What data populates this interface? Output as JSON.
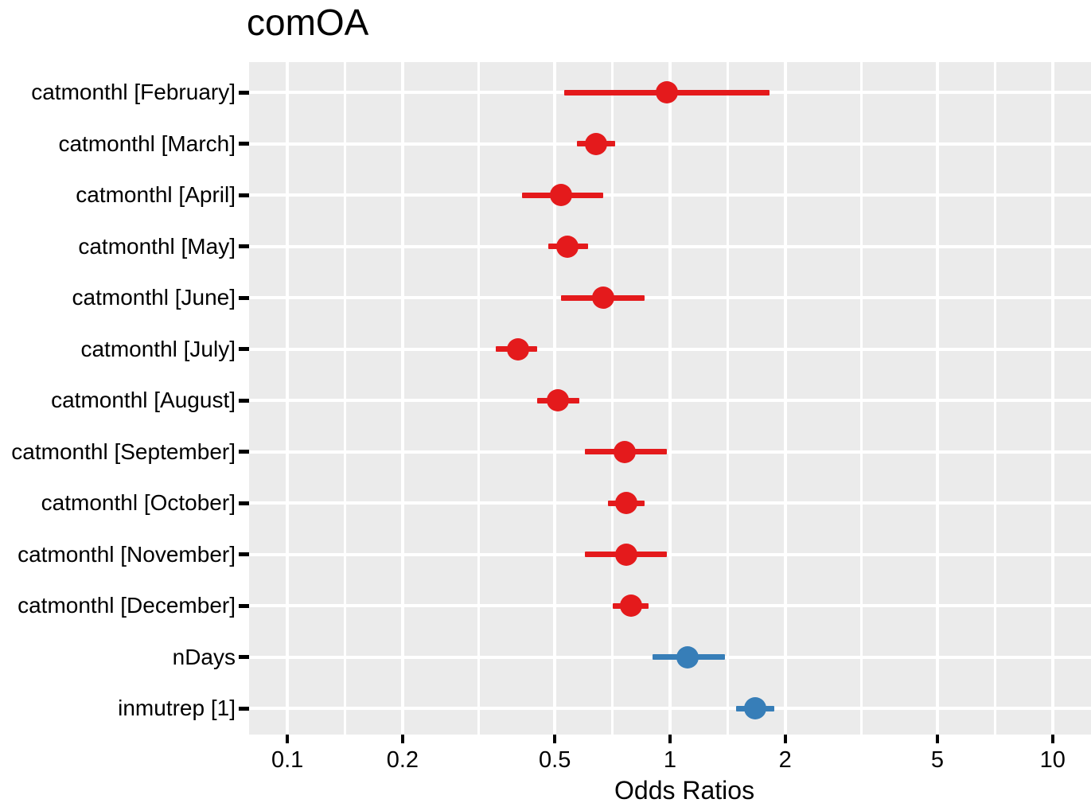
{
  "title": "comOA",
  "axis": {
    "x_title": "Odds Ratios"
  },
  "colors": {
    "negative_effect": "#E41A1C",
    "positive_effect": "#377EB8",
    "panel_background": "#EBEBEB",
    "gridline": "#FFFFFF",
    "text": "#000000"
  },
  "chart_data": {
    "type": "scatter",
    "subtype": "forest-plot-odds-ratios",
    "title": "comOA",
    "xlabel": "Odds Ratios",
    "ylabel": "",
    "x_scale": "log10",
    "x_domain": [
      0.0794,
      12.6
    ],
    "x_ticks": [
      0.1,
      0.2,
      0.5,
      1,
      2,
      5,
      10
    ],
    "x_tick_labels": [
      "0.1",
      "0.2",
      "0.5",
      "1",
      "2",
      "5",
      "10"
    ],
    "x_minor_ticks": [
      0.1414,
      0.3162,
      0.7071,
      1.4142,
      3.1623,
      7.0711
    ],
    "grid": true,
    "legend_position": "none",
    "rows": [
      {
        "label": "catmonthl [February]",
        "or": 0.98,
        "ci_low": 0.53,
        "ci_high": 1.82,
        "group": "negative_effect"
      },
      {
        "label": "catmonthl [March]",
        "or": 0.64,
        "ci_low": 0.57,
        "ci_high": 0.72,
        "group": "negative_effect"
      },
      {
        "label": "catmonthl [April]",
        "or": 0.52,
        "ci_low": 0.41,
        "ci_high": 0.67,
        "group": "negative_effect"
      },
      {
        "label": "catmonthl [May]",
        "or": 0.54,
        "ci_low": 0.48,
        "ci_high": 0.61,
        "group": "negative_effect"
      },
      {
        "label": "catmonthl [June]",
        "or": 0.67,
        "ci_low": 0.52,
        "ci_high": 0.86,
        "group": "negative_effect"
      },
      {
        "label": "catmonthl [July]",
        "or": 0.4,
        "ci_low": 0.35,
        "ci_high": 0.45,
        "group": "negative_effect"
      },
      {
        "label": "catmonthl [August]",
        "or": 0.51,
        "ci_low": 0.45,
        "ci_high": 0.58,
        "group": "negative_effect"
      },
      {
        "label": "catmonthl [September]",
        "or": 0.76,
        "ci_low": 0.6,
        "ci_high": 0.98,
        "group": "negative_effect"
      },
      {
        "label": "catmonthl [October]",
        "or": 0.77,
        "ci_low": 0.69,
        "ci_high": 0.86,
        "group": "negative_effect"
      },
      {
        "label": "catmonthl [November]",
        "or": 0.77,
        "ci_low": 0.6,
        "ci_high": 0.98,
        "group": "negative_effect"
      },
      {
        "label": "catmonthl [December]",
        "or": 0.79,
        "ci_low": 0.71,
        "ci_high": 0.88,
        "group": "negative_effect"
      },
      {
        "label": "nDays",
        "or": 1.11,
        "ci_low": 0.9,
        "ci_high": 1.39,
        "group": "positive_effect"
      },
      {
        "label": "inmutrep [1]",
        "or": 1.67,
        "ci_low": 1.49,
        "ci_high": 1.87,
        "group": "positive_effect"
      }
    ]
  }
}
